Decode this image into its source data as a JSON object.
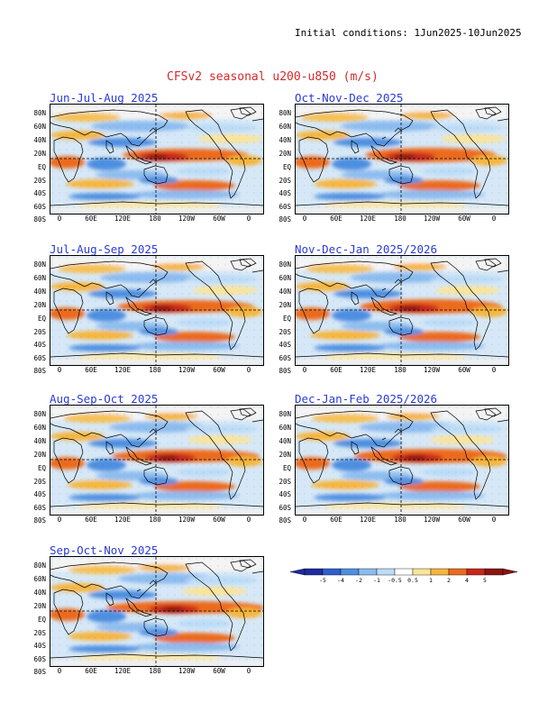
{
  "header": {
    "initial_conditions": "Initial conditions: 1Jun2025-10Jun2025",
    "title": "CFSv2 seasonal u200-u850 (m/s)"
  },
  "lat_labels": [
    "80N",
    "60N",
    "40N",
    "20N",
    "EQ",
    "20S",
    "40S",
    "60S",
    "80S"
  ],
  "lon_labels": [
    "0",
    "60E",
    "120E",
    "180",
    "120W",
    "60W",
    "0"
  ],
  "panels": [
    {
      "title": "Jun-Jul-Aug 2025"
    },
    {
      "title": "Oct-Nov-Dec 2025"
    },
    {
      "title": "Jul-Aug-Sep 2025"
    },
    {
      "title": "Nov-Dec-Jan 2025/2026"
    },
    {
      "title": "Aug-Sep-Oct 2025"
    },
    {
      "title": "Dec-Jan-Feb 2025/2026"
    },
    {
      "title": "Sep-Oct-Nov 2025"
    }
  ],
  "colorbar": {
    "labels": [
      "-5",
      "-4",
      "-2",
      "-1",
      "-0.5",
      "0.5",
      "1",
      "2",
      "4",
      "5"
    ],
    "colors": [
      "#1e2aa0",
      "#2f5fd0",
      "#4e8fe0",
      "#8cbcef",
      "#bcdcf7",
      "#ffffff",
      "#fbe49a",
      "#f7b53e",
      "#ec6a1e",
      "#c8261a",
      "#8c1410"
    ]
  },
  "colors": {
    "title_red": "#d42a2a",
    "panel_title_blue": "#2a3ad8"
  }
}
